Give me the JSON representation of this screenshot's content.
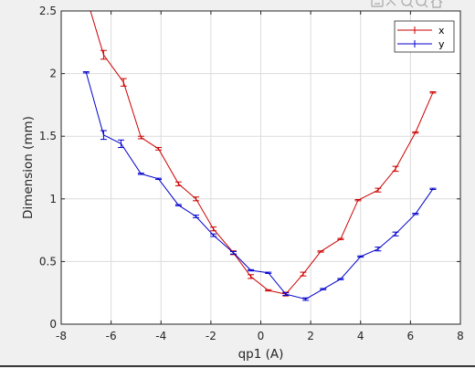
{
  "figure": {
    "background_color": "#f0f0f0",
    "toolbar_icons": [
      "save-icon",
      "brush-icon",
      "zoom-in-icon",
      "zoom-out-icon",
      "home-icon"
    ]
  },
  "chart_data": {
    "type": "line",
    "title": "",
    "xlabel": "qp1 (A)",
    "ylabel": "Dimension (mm)",
    "xlim": [
      -8,
      8
    ],
    "ylim": [
      0,
      2.5
    ],
    "xticks": [
      -8,
      -6,
      -4,
      -2,
      0,
      2,
      4,
      6,
      8
    ],
    "yticks": [
      0,
      0.5,
      1,
      1.5,
      2,
      2.5
    ],
    "xtick_labels": [
      "-8",
      "-6",
      "-4",
      "-2",
      "0",
      "2",
      "4",
      "6",
      "8"
    ],
    "ytick_labels": [
      "0",
      "0.5",
      "1",
      "1.5",
      "2",
      "2.5"
    ],
    "grid": true,
    "legend_position": "top-right",
    "error_bars": true,
    "series": [
      {
        "name": "x",
        "color": "#cc0000",
        "x": [
          -6.9,
          -6.3,
          -5.5,
          -4.8,
          -4.1,
          -3.3,
          -2.6,
          -1.9,
          -1.1,
          -0.4,
          0.3,
          1.0,
          1.7,
          2.4,
          3.2,
          3.9,
          4.7,
          5.4,
          6.2,
          6.9
        ],
        "y": [
          2.55,
          2.15,
          1.93,
          1.49,
          1.4,
          1.12,
          1.0,
          0.76,
          0.57,
          0.38,
          0.27,
          0.24,
          0.4,
          0.58,
          0.68,
          0.99,
          1.07,
          1.24,
          1.53,
          1.85
        ],
        "err": [
          0.02,
          0.035,
          0.03,
          0.01,
          0.01,
          0.015,
          0.015,
          0.015,
          0.015,
          0.015,
          0.005,
          0.015,
          0.015,
          0.005,
          0.005,
          0.005,
          0.015,
          0.02,
          0.005,
          0.005
        ]
      },
      {
        "name": "y",
        "color": "#0000cc",
        "x": [
          -7.0,
          -6.3,
          -5.6,
          -4.8,
          -4.1,
          -3.3,
          -2.6,
          -1.9,
          -1.1,
          -0.4,
          0.3,
          1.0,
          1.8,
          2.5,
          3.2,
          4.0,
          4.7,
          5.4,
          6.2,
          6.9
        ],
        "y": [
          2.01,
          1.51,
          1.44,
          1.2,
          1.16,
          0.95,
          0.86,
          0.71,
          0.57,
          0.43,
          0.41,
          0.24,
          0.2,
          0.28,
          0.36,
          0.54,
          0.6,
          0.72,
          0.88,
          1.08
        ],
        "err": [
          0.005,
          0.035,
          0.03,
          0.005,
          0.005,
          0.005,
          0.01,
          0.01,
          0.01,
          0.005,
          0.005,
          0.01,
          0.01,
          0.005,
          0.005,
          0.005,
          0.015,
          0.015,
          0.005,
          0.005
        ]
      }
    ]
  }
}
